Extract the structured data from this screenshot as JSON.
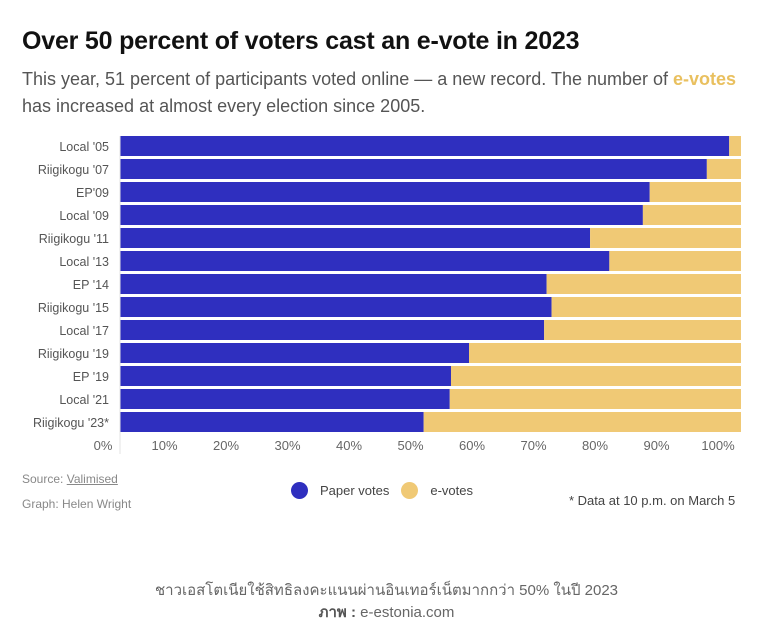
{
  "header": {
    "title": "Over 50 percent of voters cast an e-vote in 2023",
    "subtitle_before": "This year, 51 percent of participants voted online — a new record. The number of ",
    "subtitle_highlight": "e-votes",
    "subtitle_after": " has increased at almost every election since 2005."
  },
  "colors": {
    "paper": "#2f2fbf",
    "evote": "#f0c975",
    "highlight": "#e9c05f"
  },
  "chart_data": {
    "type": "bar",
    "orientation": "horizontal",
    "stacked": true,
    "title": "Over 50 percent of voters cast an e-vote in 2023",
    "xlabel": "",
    "ylabel": "",
    "xlim": [
      0,
      100
    ],
    "x_ticks": [
      "0%",
      "10%",
      "20%",
      "30%",
      "40%",
      "50%",
      "60%",
      "70%",
      "80%",
      "90%",
      "100%"
    ],
    "categories": [
      "Local '05",
      "Riigikogu '07",
      "EP'09",
      "Local '09",
      "Riigikogu '11",
      "Local '13",
      "EP '14",
      "Riigikogu '15",
      "Local '17",
      "Riigikogu '19",
      "EP '19",
      "Local '21",
      "Riigikogu '23*"
    ],
    "series": [
      {
        "name": "Paper votes",
        "color": "#2f2fbf",
        "values": [
          98.1,
          94.5,
          85.3,
          84.2,
          75.7,
          78.8,
          68.7,
          69.5,
          68.3,
          56.2,
          53.3,
          53.1,
          48.9
        ]
      },
      {
        "name": "e-votes",
        "color": "#f0c975",
        "values": [
          1.9,
          5.5,
          14.7,
          15.8,
          24.3,
          21.2,
          31.3,
          30.5,
          31.7,
          43.8,
          46.7,
          46.9,
          51.1
        ]
      }
    ],
    "legend": {
      "position": "bottom-center",
      "entries": [
        "Paper votes",
        "e-votes"
      ]
    },
    "grid": false
  },
  "footer": {
    "source_label": "Source: ",
    "source_link": "Valimised",
    "credit": "Graph: Helen Wright",
    "note": "* Data at 10 p.m. on March 5"
  },
  "caption": {
    "line1": "ชาวเอสโตเนียใช้สิทธิลงคะแนนผ่านอินเทอร์เน็ตมากกว่า 50% ในปี 2023",
    "photo_label": "ภาพ : ",
    "photo_credit": "e-estonia.com"
  }
}
